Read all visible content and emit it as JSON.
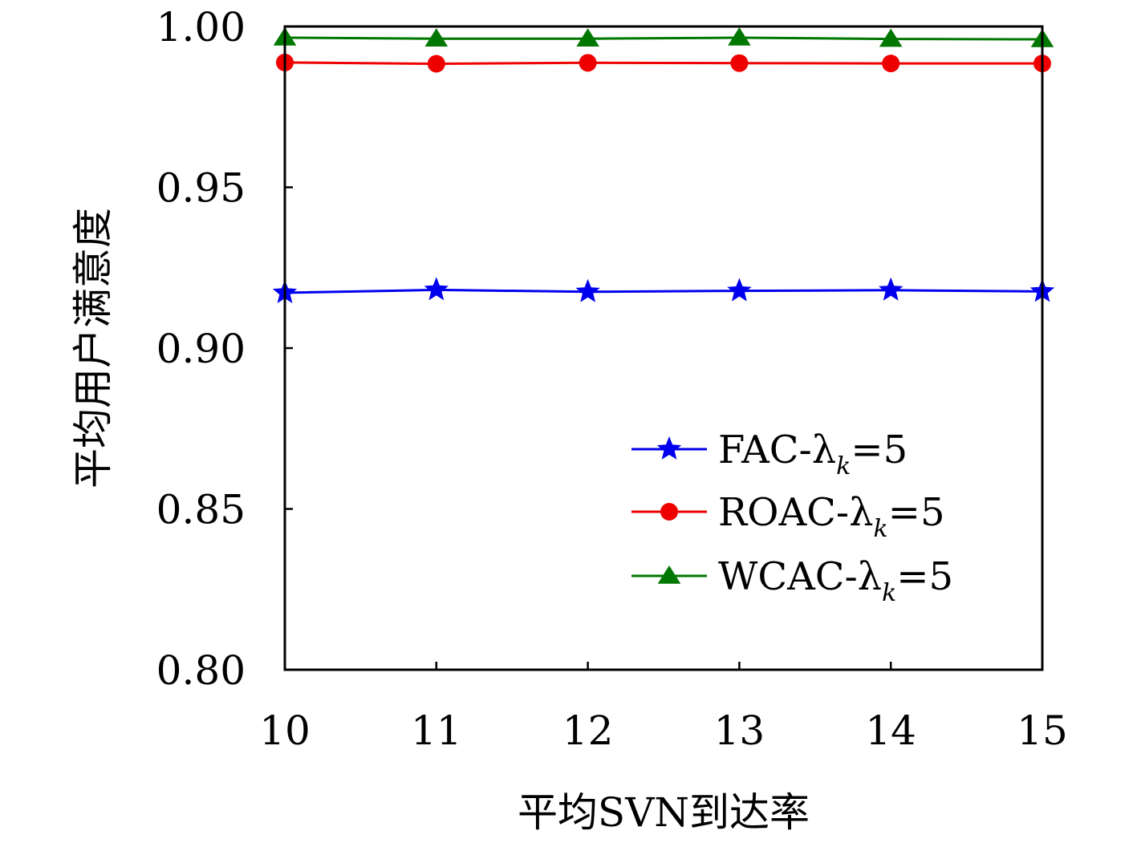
{
  "chart_data": {
    "type": "line",
    "xlabel": "平均SVN到达率",
    "ylabel": "平均用户满意度",
    "x": [
      10,
      11,
      12,
      13,
      14,
      15
    ],
    "xlim": [
      10,
      15
    ],
    "ylim": [
      0.8,
      1.0
    ],
    "xticks": [
      "10",
      "11",
      "12",
      "13",
      "14",
      "15"
    ],
    "yticks": [
      "0.80",
      "0.85",
      "0.90",
      "0.95",
      "1.00"
    ],
    "ytick_values": [
      0.8,
      0.85,
      0.9,
      0.95,
      1.0
    ],
    "grid": false,
    "legend_position": "lower-right",
    "series": [
      {
        "name": "FAC-λk=5",
        "label_base": "FAC-λ",
        "label_sub": "k",
        "label_tail": "=5",
        "color": "#0000ee",
        "marker": "star",
        "values": [
          0.9172,
          0.9181,
          0.9175,
          0.9178,
          0.918,
          0.9176
        ]
      },
      {
        "name": "ROAC-λk=5",
        "label_base": "ROAC-λ",
        "label_sub": "k",
        "label_tail": "=5",
        "color": "#ee0000",
        "marker": "circle",
        "values": [
          0.9888,
          0.9884,
          0.9887,
          0.9886,
          0.9885,
          0.9885
        ]
      },
      {
        "name": "WCAC-λk=5",
        "label_base": "WCAC-λ",
        "label_sub": "k",
        "label_tail": "=5",
        "color": "#007700",
        "marker": "triangle",
        "values": [
          0.9965,
          0.9962,
          0.9962,
          0.9965,
          0.9961,
          0.996
        ]
      }
    ]
  }
}
